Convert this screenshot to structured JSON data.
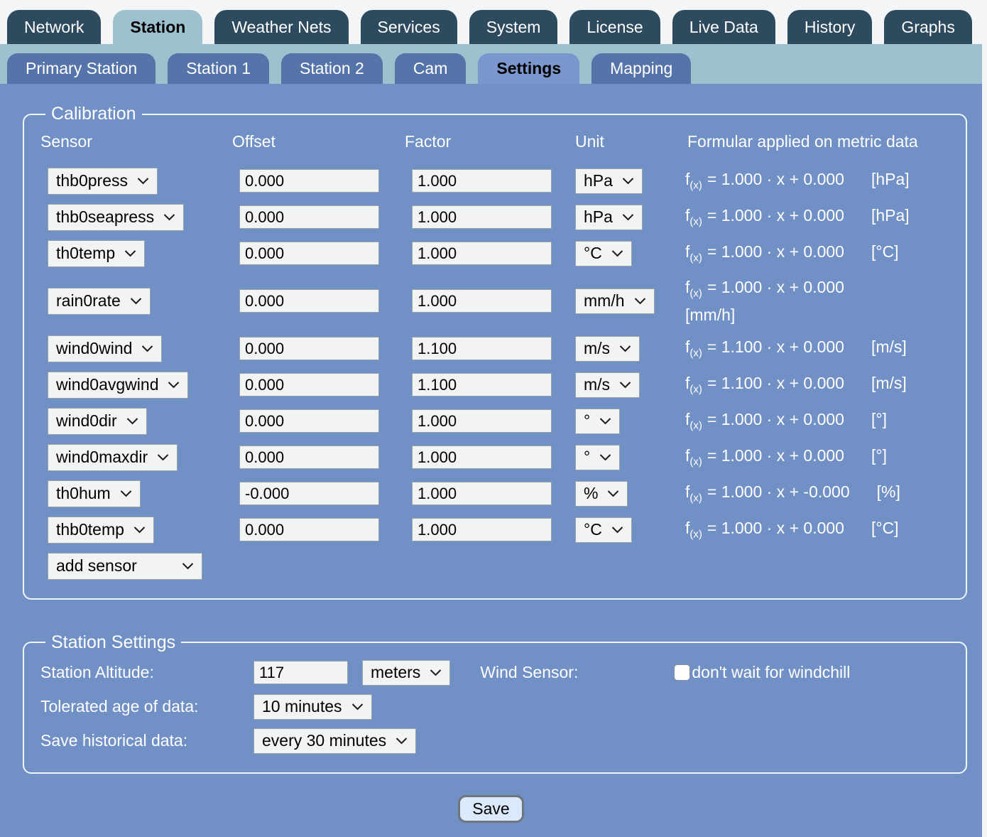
{
  "colors": {
    "main_background": "#7190c5",
    "primary_tab": "#2d4a5f",
    "primary_tab_selected": "#9ec1cf",
    "secondary_strip": "#9ec1cf",
    "secondary_tab": "#5574aa",
    "secondary_tab_selected": "#7b97cd",
    "field_background": "#f2f4f4",
    "save_button_background": "#dbe9fd",
    "label_text": "#ffffff"
  },
  "primary_tabs": [
    {
      "label": "Network",
      "selected": false
    },
    {
      "label": "Station",
      "selected": true
    },
    {
      "label": "Weather Nets",
      "selected": false
    },
    {
      "label": "Services",
      "selected": false
    },
    {
      "label": "System",
      "selected": false
    },
    {
      "label": "License",
      "selected": false
    },
    {
      "label": "Live Data",
      "selected": false
    },
    {
      "label": "History",
      "selected": false
    },
    {
      "label": "Graphs",
      "selected": false
    }
  ],
  "secondary_tabs": [
    {
      "label": "Primary Station",
      "selected": false
    },
    {
      "label": "Station 1",
      "selected": false
    },
    {
      "label": "Station 2",
      "selected": false
    },
    {
      "label": "Cam",
      "selected": false
    },
    {
      "label": "Settings",
      "selected": true
    },
    {
      "label": "Mapping",
      "selected": false
    }
  ],
  "calibration": {
    "legend": "Calibration",
    "headers": {
      "sensor": "Sensor",
      "offset": "Offset",
      "factor": "Factor",
      "unit": "Unit",
      "formula": "Formular applied on metric data"
    },
    "formula_prefix": "f",
    "formula_sub": "(x)",
    "rows": [
      {
        "sensor": "thb0press",
        "offset": "0.000",
        "factor": "1.000",
        "unit": "hPa",
        "formula_body": "= 1.000 · x + 0.000",
        "formula_unit": "[hPa]",
        "formula_unit_newline": false
      },
      {
        "sensor": "thb0seapress",
        "offset": "0.000",
        "factor": "1.000",
        "unit": "hPa",
        "formula_body": "= 1.000 · x + 0.000",
        "formula_unit": "[hPa]",
        "formula_unit_newline": false
      },
      {
        "sensor": "th0temp",
        "offset": "0.000",
        "factor": "1.000",
        "unit": "°C",
        "formula_body": "= 1.000 · x + 0.000",
        "formula_unit": "[°C]",
        "formula_unit_newline": false
      },
      {
        "sensor": "rain0rate",
        "offset": "0.000",
        "factor": "1.000",
        "unit": "mm/h",
        "formula_body": "= 1.000 · x + 0.000",
        "formula_unit": "[mm/h]",
        "formula_unit_newline": true
      },
      {
        "sensor": "wind0wind",
        "offset": "0.000",
        "factor": "1.100",
        "unit": "m/s",
        "formula_body": "= 1.100 · x + 0.000",
        "formula_unit": "[m/s]",
        "formula_unit_newline": false
      },
      {
        "sensor": "wind0avgwind",
        "offset": "0.000",
        "factor": "1.100",
        "unit": "m/s",
        "formula_body": "= 1.100 · x + 0.000",
        "formula_unit": "[m/s]",
        "formula_unit_newline": false
      },
      {
        "sensor": "wind0dir",
        "offset": "0.000",
        "factor": "1.000",
        "unit": "°",
        "formula_body": "= 1.000 · x + 0.000",
        "formula_unit": "[°]",
        "formula_unit_newline": false
      },
      {
        "sensor": "wind0maxdir",
        "offset": "0.000",
        "factor": "1.000",
        "unit": "°",
        "formula_body": "= 1.000 · x + 0.000",
        "formula_unit": "[°]",
        "formula_unit_newline": false
      },
      {
        "sensor": "th0hum",
        "offset": "-0.000",
        "factor": "1.000",
        "unit": "%",
        "formula_body": "= 1.000 · x + -0.000",
        "formula_unit": "[%]",
        "formula_unit_newline": false
      },
      {
        "sensor": "thb0temp",
        "offset": "0.000",
        "factor": "1.000",
        "unit": "°C",
        "formula_body": "= 1.000 · x + 0.000",
        "formula_unit": "[°C]",
        "formula_unit_newline": false
      }
    ],
    "add_sensor_label": "add sensor"
  },
  "station_settings": {
    "legend": "Station Settings",
    "altitude_label": "Station Altitude:",
    "altitude_value": "117",
    "altitude_unit": "meters",
    "wind_sensor_label": "Wind Sensor:",
    "windchill_checkbox_label": "don't wait for windchill",
    "windchill_checked": false,
    "tolerated_age_label": "Tolerated age of data:",
    "tolerated_age_value": "10 minutes",
    "save_historical_label": "Save historical data:",
    "save_historical_value": "every 30 minutes"
  },
  "save_button_label": "Save"
}
